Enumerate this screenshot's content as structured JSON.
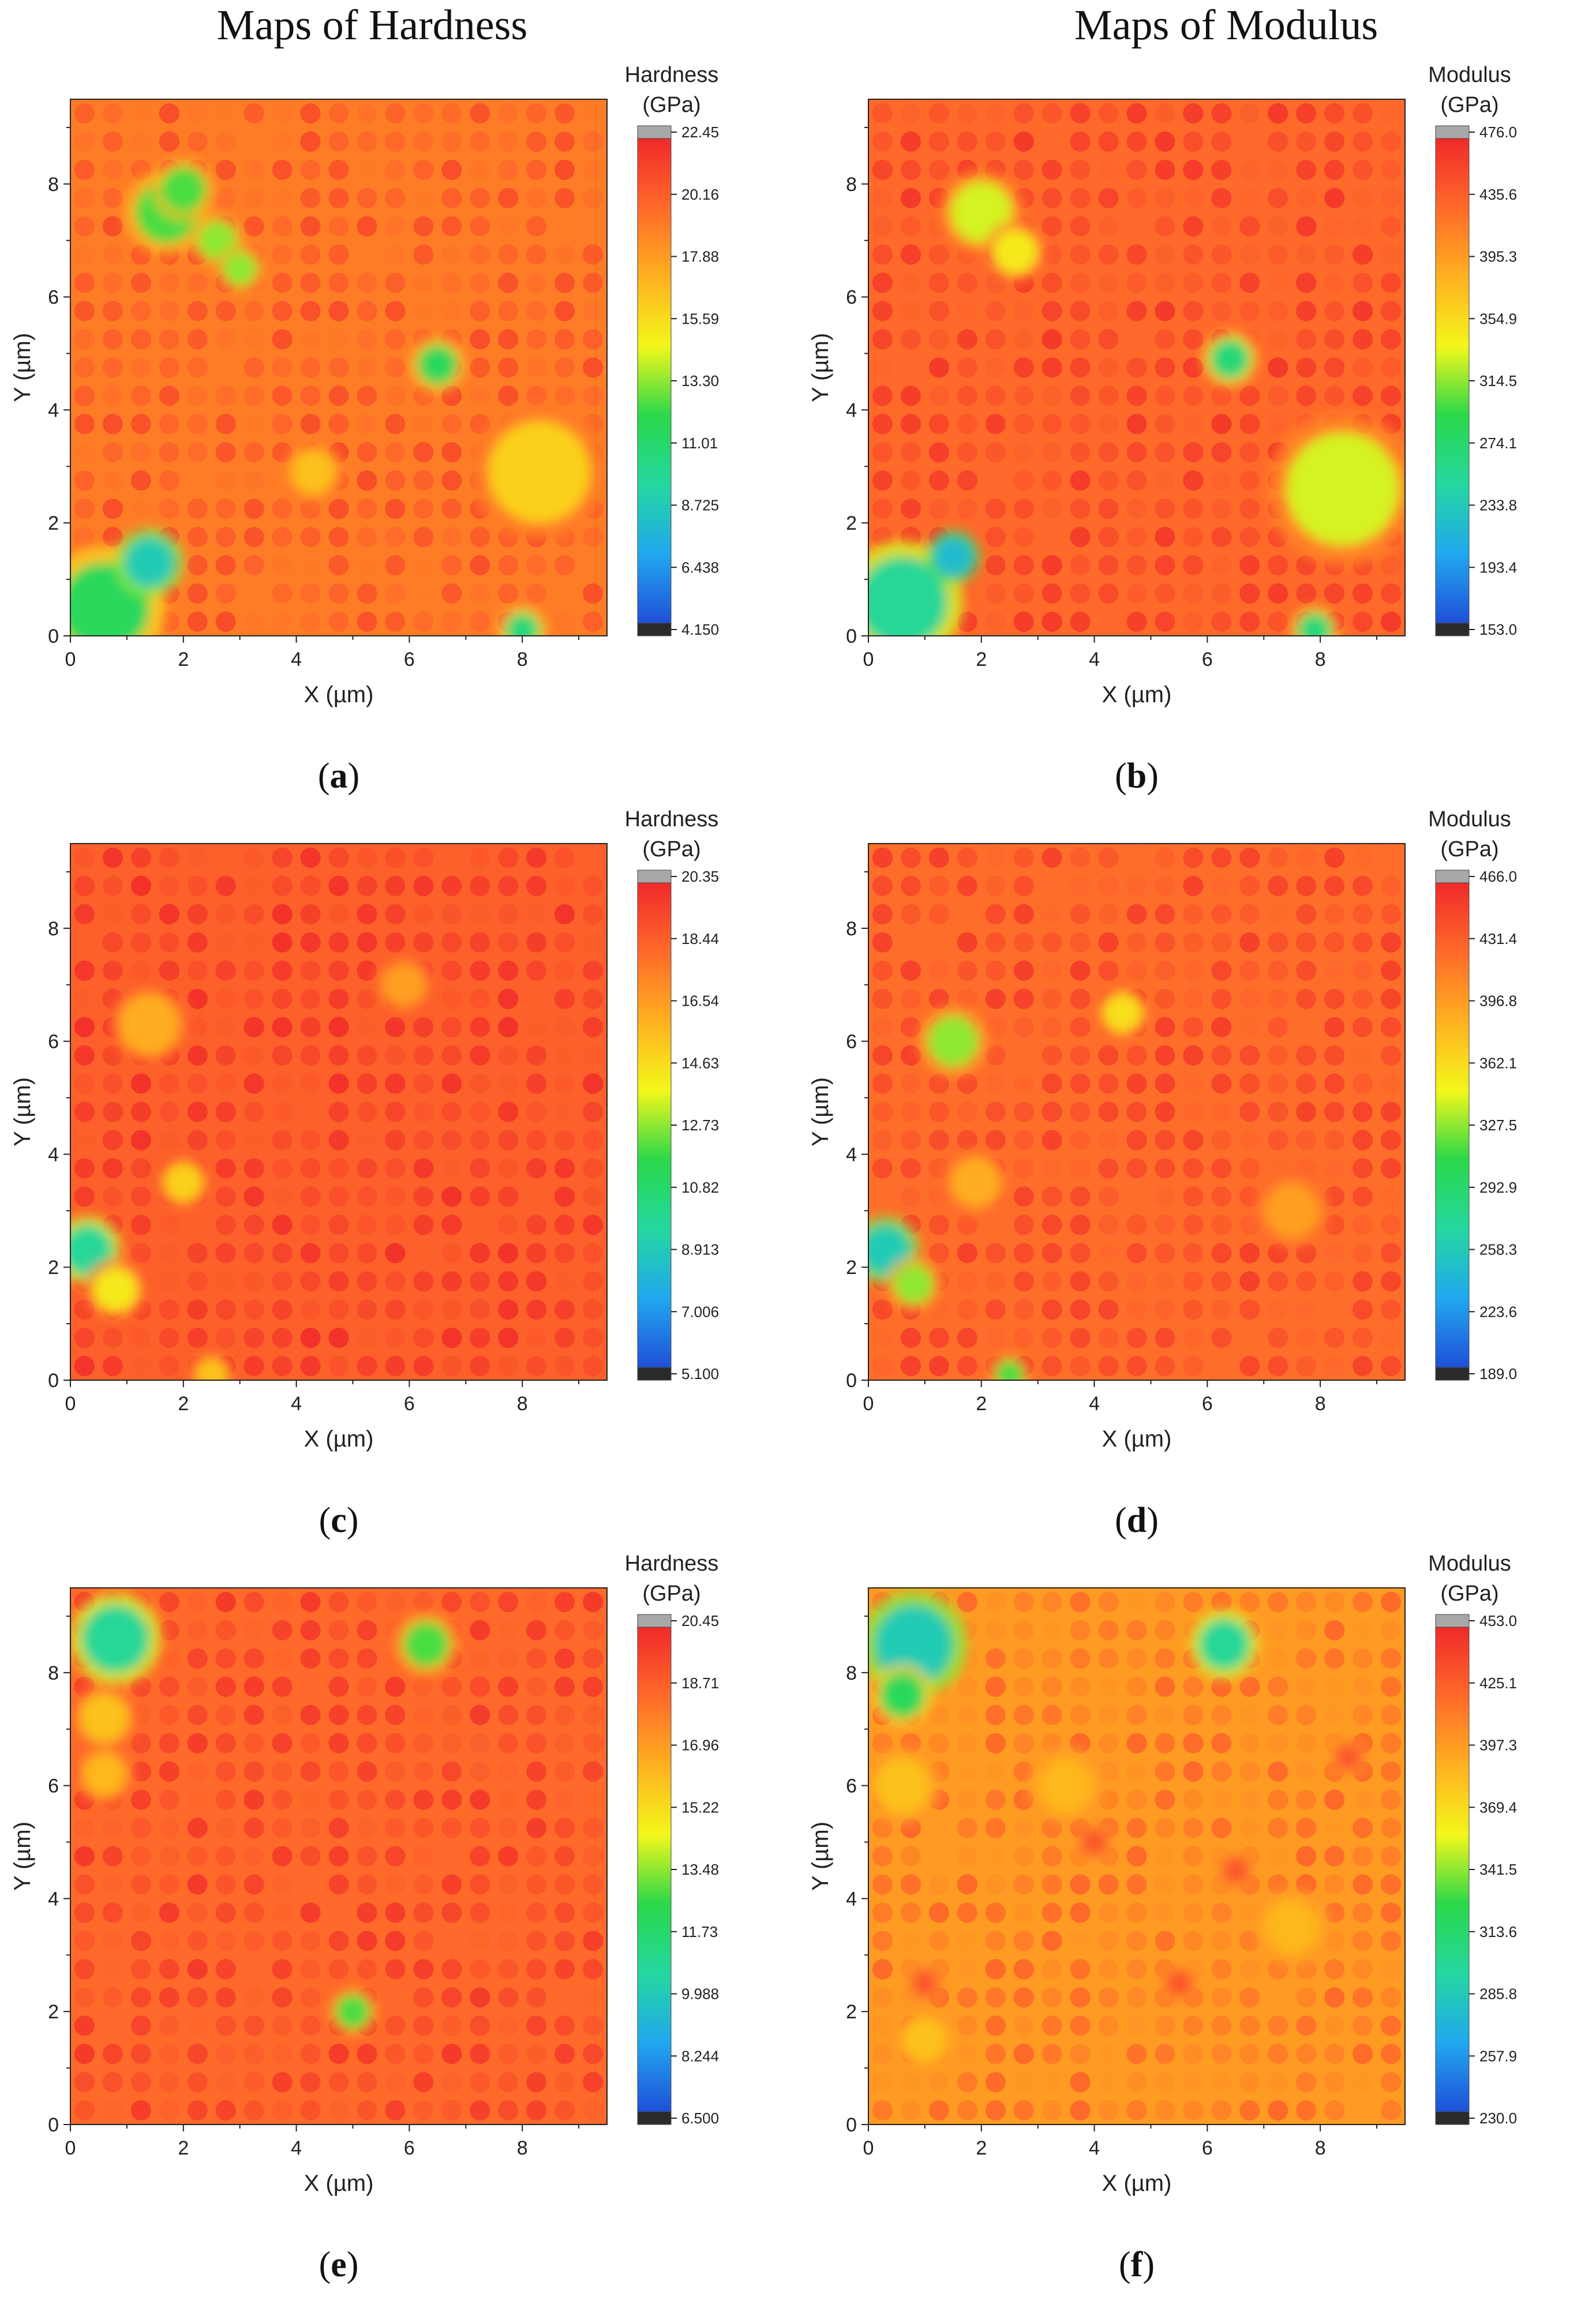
{
  "titles": {
    "left": "Maps of Hardness",
    "right": "Maps of Modulus"
  },
  "chart_data": [
    {
      "type": "heatmap",
      "panel": "a",
      "xlabel": "X (µm)",
      "ylabel": "Y (µm)",
      "xlim": [
        0,
        9.5
      ],
      "ylim": [
        0,
        9.5
      ],
      "xticks": [
        "0",
        "2",
        "4",
        "6",
        "8"
      ],
      "yticks": [
        "0",
        "2",
        "4",
        "6",
        "8"
      ],
      "colorbar_title": [
        "Hardness",
        "(GPa)"
      ],
      "colorbar_labels": [
        "22.45",
        "20.16",
        "17.88",
        "15.59",
        "13.30",
        "11.01",
        "8.725",
        "6.438",
        "4.150"
      ],
      "grid_spacing": 0.5,
      "base_level": 0.82,
      "features": [
        {
          "x": 1.7,
          "y": 7.5,
          "r": 0.55,
          "level": 0.45
        },
        {
          "x": 2.0,
          "y": 7.9,
          "r": 0.4,
          "level": 0.45
        },
        {
          "x": 2.6,
          "y": 7.0,
          "r": 0.35,
          "level": 0.5
        },
        {
          "x": 3.0,
          "y": 6.5,
          "r": 0.3,
          "level": 0.5
        },
        {
          "x": 6.5,
          "y": 4.8,
          "r": 0.35,
          "level": 0.4
        },
        {
          "x": 0.6,
          "y": 0.5,
          "r": 0.8,
          "level": 0.4
        },
        {
          "x": 1.4,
          "y": 1.3,
          "r": 0.45,
          "level": 0.25
        },
        {
          "x": 8.0,
          "y": 0.1,
          "r": 0.3,
          "level": 0.35
        },
        {
          "x": 8.3,
          "y": 2.9,
          "r": 0.9,
          "level": 0.65
        },
        {
          "x": 4.3,
          "y": 2.9,
          "r": 0.4,
          "level": 0.68
        }
      ]
    },
    {
      "type": "heatmap",
      "panel": "b",
      "xlabel": "X (µm)",
      "ylabel": "Y (µm)",
      "xlim": [
        0,
        9.5
      ],
      "ylim": [
        0,
        9.5
      ],
      "xticks": [
        "0",
        "2",
        "4",
        "6",
        "8"
      ],
      "yticks": [
        "0",
        "2",
        "4",
        "6",
        "8"
      ],
      "colorbar_title": [
        "Modulus",
        "(GPa)"
      ],
      "colorbar_labels": [
        "476.0",
        "435.6",
        "395.3",
        "354.9",
        "314.5",
        "274.1",
        "233.8",
        "193.4",
        "153.0"
      ],
      "grid_spacing": 0.5,
      "base_level": 0.86,
      "features": [
        {
          "x": 2.0,
          "y": 7.5,
          "r": 0.55,
          "level": 0.55
        },
        {
          "x": 2.6,
          "y": 6.8,
          "r": 0.4,
          "level": 0.6
        },
        {
          "x": 6.4,
          "y": 4.9,
          "r": 0.35,
          "level": 0.35
        },
        {
          "x": 8.4,
          "y": 2.6,
          "r": 1.0,
          "level": 0.55
        },
        {
          "x": 0.6,
          "y": 0.6,
          "r": 0.8,
          "level": 0.3
        },
        {
          "x": 1.5,
          "y": 1.4,
          "r": 0.35,
          "level": 0.2
        },
        {
          "x": 7.9,
          "y": 0.1,
          "r": 0.3,
          "level": 0.35
        }
      ]
    },
    {
      "type": "heatmap",
      "panel": "c",
      "xlabel": "X (µm)",
      "ylabel": "Y (µm)",
      "xlim": [
        0,
        9.5
      ],
      "ylim": [
        0,
        9.5
      ],
      "xticks": [
        "0",
        "2",
        "4",
        "6",
        "8"
      ],
      "yticks": [
        "0",
        "2",
        "4",
        "6",
        "8"
      ],
      "colorbar_title": [
        "Hardness",
        "(GPa)"
      ],
      "colorbar_labels": [
        "20.35",
        "18.44",
        "16.54",
        "14.63",
        "12.73",
        "10.82",
        "8.913",
        "7.006",
        "5.100"
      ],
      "grid_spacing": 0.5,
      "base_level": 0.88,
      "features": [
        {
          "x": 1.4,
          "y": 6.3,
          "r": 0.55,
          "level": 0.72
        },
        {
          "x": 2.0,
          "y": 3.5,
          "r": 0.35,
          "level": 0.65
        },
        {
          "x": 0.3,
          "y": 2.3,
          "r": 0.45,
          "level": 0.3
        },
        {
          "x": 0.8,
          "y": 1.6,
          "r": 0.4,
          "level": 0.6
        },
        {
          "x": 5.9,
          "y": 7.0,
          "r": 0.4,
          "level": 0.75
        },
        {
          "x": 2.5,
          "y": 0.1,
          "r": 0.3,
          "level": 0.68
        }
      ]
    },
    {
      "type": "heatmap",
      "panel": "d",
      "xlabel": "X (µm)",
      "ylabel": "Y (µm)",
      "xlim": [
        0,
        9.5
      ],
      "ylim": [
        0,
        9.5
      ],
      "xticks": [
        "0",
        "2",
        "4",
        "6",
        "8"
      ],
      "yticks": [
        "0",
        "2",
        "4",
        "6",
        "8"
      ],
      "colorbar_title": [
        "Modulus",
        "(GPa)"
      ],
      "colorbar_labels": [
        "466.0",
        "431.4",
        "396.8",
        "362.1",
        "327.5",
        "292.9",
        "258.3",
        "223.6",
        "189.0"
      ],
      "grid_spacing": 0.5,
      "base_level": 0.85,
      "features": [
        {
          "x": 1.5,
          "y": 6.0,
          "r": 0.45,
          "level": 0.5
        },
        {
          "x": 4.5,
          "y": 6.5,
          "r": 0.35,
          "level": 0.62
        },
        {
          "x": 0.3,
          "y": 2.3,
          "r": 0.45,
          "level": 0.25
        },
        {
          "x": 0.8,
          "y": 1.7,
          "r": 0.35,
          "level": 0.5
        },
        {
          "x": 2.5,
          "y": 0.1,
          "r": 0.25,
          "level": 0.45
        },
        {
          "x": 1.9,
          "y": 3.5,
          "r": 0.45,
          "level": 0.72
        },
        {
          "x": 7.5,
          "y": 3.0,
          "r": 0.5,
          "level": 0.75
        }
      ]
    },
    {
      "type": "heatmap",
      "panel": "e",
      "xlabel": "X (µm)",
      "ylabel": "Y (µm)",
      "xlim": [
        0,
        9.5
      ],
      "ylim": [
        0,
        9.5
      ],
      "xticks": [
        "0",
        "2",
        "4",
        "6",
        "8"
      ],
      "yticks": [
        "0",
        "2",
        "4",
        "6",
        "8"
      ],
      "colorbar_title": [
        "Hardness",
        "(GPa)"
      ],
      "colorbar_labels": [
        "20.45",
        "18.71",
        "16.96",
        "15.22",
        "13.48",
        "11.73",
        "9.988",
        "8.244",
        "6.500"
      ],
      "grid_spacing": 0.5,
      "base_level": 0.86,
      "features": [
        {
          "x": 0.8,
          "y": 8.6,
          "r": 0.6,
          "level": 0.3
        },
        {
          "x": 0.6,
          "y": 7.2,
          "r": 0.45,
          "level": 0.68
        },
        {
          "x": 6.3,
          "y": 8.5,
          "r": 0.4,
          "level": 0.45
        },
        {
          "x": 5.0,
          "y": 2.0,
          "r": 0.3,
          "level": 0.45
        },
        {
          "x": 0.6,
          "y": 6.2,
          "r": 0.4,
          "level": 0.7
        }
      ]
    },
    {
      "type": "heatmap",
      "panel": "f",
      "xlabel": "X (µm)",
      "ylabel": "Y (µm)",
      "xlim": [
        0,
        9.5
      ],
      "ylim": [
        0,
        9.5
      ],
      "xticks": [
        "0",
        "2",
        "4",
        "6",
        "8"
      ],
      "yticks": [
        "0",
        "2",
        "4",
        "6",
        "8"
      ],
      "colorbar_title": [
        "Modulus",
        "(GPa)"
      ],
      "colorbar_labels": [
        "453.0",
        "425.1",
        "397.3",
        "369.4",
        "341.5",
        "313.6",
        "285.8",
        "257.9",
        "230.0"
      ],
      "grid_spacing": 0.5,
      "base_level": 0.76,
      "features": [
        {
          "x": 0.8,
          "y": 8.5,
          "r": 0.7,
          "level": 0.25
        },
        {
          "x": 0.6,
          "y": 7.6,
          "r": 0.4,
          "level": 0.4
        },
        {
          "x": 6.3,
          "y": 8.5,
          "r": 0.45,
          "level": 0.3
        },
        {
          "x": 0.6,
          "y": 6.0,
          "r": 0.5,
          "level": 0.68
        },
        {
          "x": 1.0,
          "y": 1.5,
          "r": 0.4,
          "level": 0.68
        },
        {
          "x": 4.0,
          "y": 5.0,
          "r": 0.25,
          "level": 0.9
        },
        {
          "x": 6.5,
          "y": 4.5,
          "r": 0.25,
          "level": 0.9
        },
        {
          "x": 5.5,
          "y": 2.5,
          "r": 0.25,
          "level": 0.9
        },
        {
          "x": 1.0,
          "y": 2.5,
          "r": 0.25,
          "level": 0.9
        },
        {
          "x": 8.5,
          "y": 6.5,
          "r": 0.25,
          "level": 0.9
        },
        {
          "x": 3.5,
          "y": 6.0,
          "r": 0.5,
          "level": 0.7
        },
        {
          "x": 7.5,
          "y": 3.5,
          "r": 0.5,
          "level": 0.7
        }
      ]
    }
  ],
  "captions": [
    {
      "open": "(",
      "letter": "a",
      "close": ")"
    },
    {
      "open": "(",
      "letter": "b",
      "close": ")"
    },
    {
      "open": "(",
      "letter": "c",
      "close": ")"
    },
    {
      "open": "(",
      "letter": "d",
      "close": ")"
    },
    {
      "open": "(",
      "letter": "e",
      "close": ")"
    },
    {
      "open": "(",
      "letter": "f",
      "close": ")"
    }
  ],
  "colors": {
    "colorbar_stops": [
      "#2b2b2b",
      "#1f4fd8",
      "#20a8ee",
      "#24d7a0",
      "#2ad84a",
      "#f3f71a",
      "#ffb020",
      "#ff6a2a",
      "#f02a2a",
      "#a8a8a8"
    ]
  }
}
